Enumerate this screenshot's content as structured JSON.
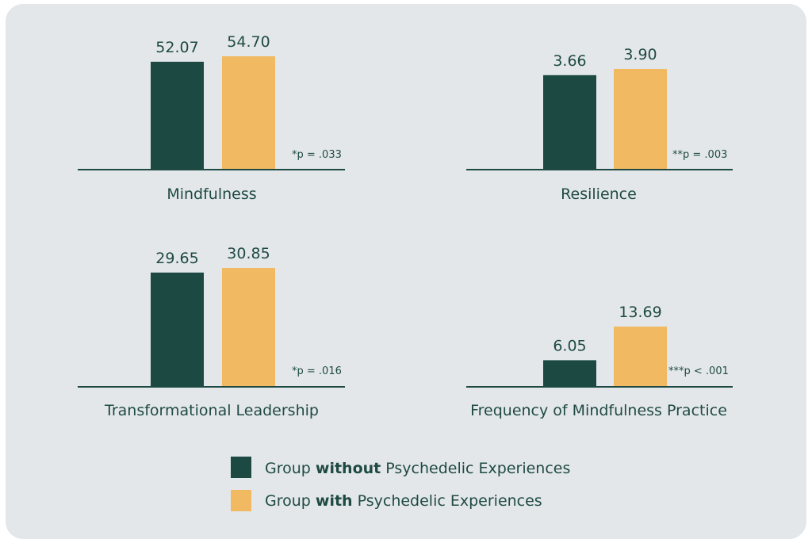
{
  "colors": {
    "background": "#e3e7ea",
    "without": "#1c4a43",
    "with": "#f0b962",
    "text": "#1f4a44"
  },
  "legend": [
    {
      "prefix": "Group ",
      "bold": "without",
      "suffix": " Psychedelic Experiences",
      "color": "#1c4a43"
    },
    {
      "prefix": "Group ",
      "bold": "with",
      "suffix": " Psychedelic Experiences",
      "color": "#f0b962"
    }
  ],
  "chart_data": [
    {
      "type": "bar",
      "title": "Mindfulness",
      "categories": [
        "Group without Psychedelic Experiences",
        "Group with Psychedelic Experiences"
      ],
      "values": [
        52.07,
        54.7
      ],
      "value_labels": [
        "52.07",
        "54.70"
      ],
      "annotation": "*p = .033"
    },
    {
      "type": "bar",
      "title": "Resilience",
      "categories": [
        "Group without Psychedelic Experiences",
        "Group with Psychedelic Experiences"
      ],
      "values": [
        3.66,
        3.9
      ],
      "value_labels": [
        "3.66",
        "3.90"
      ],
      "annotation": "**p = .003"
    },
    {
      "type": "bar",
      "title": "Transformational Leadership",
      "categories": [
        "Group without Psychedelic Experiences",
        "Group with Psychedelic Experiences"
      ],
      "values": [
        29.65,
        30.85
      ],
      "value_labels": [
        "29.65",
        "30.85"
      ],
      "annotation": "*p = .016"
    },
    {
      "type": "bar",
      "title": "Frequency of Mindfulness Practice",
      "categories": [
        "Group without Psychedelic Experiences",
        "Group with Psychedelic Experiences"
      ],
      "values": [
        6.05,
        13.69
      ],
      "value_labels": [
        "6.05",
        "13.69"
      ],
      "annotation": "***p < .001"
    }
  ]
}
